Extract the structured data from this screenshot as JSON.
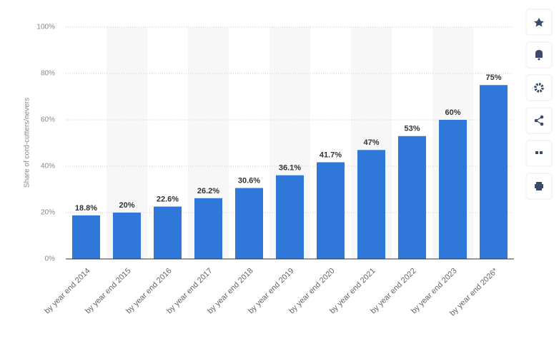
{
  "chart_data": {
    "type": "bar",
    "y_axis_label": "Share of cord-cutters/nevers",
    "categories": [
      "by year end 2014",
      "by year end 2015",
      "by year end 2016",
      "by year end 2017",
      "by year end 2018",
      "by year end 2019",
      "by year end 2020",
      "by year end 2021",
      "by year end 2022",
      "by year end 2023",
      "by year end 2026*"
    ],
    "values": [
      18.8,
      20,
      22.6,
      26.2,
      30.6,
      36.1,
      41.7,
      47,
      53,
      60,
      75
    ],
    "value_labels": [
      "18.8%",
      "20%",
      "22.6%",
      "26.2%",
      "30.6%",
      "36.1%",
      "41.7%",
      "47%",
      "53%",
      "60%",
      "75%"
    ],
    "color": "#2f77d9",
    "ylim": [
      0,
      100
    ],
    "yticks": [
      {
        "value": 0,
        "label": "0%"
      },
      {
        "value": 20,
        "label": "20%"
      },
      {
        "value": 40,
        "label": "40%"
      },
      {
        "value": 60,
        "label": "60%"
      },
      {
        "value": 80,
        "label": "80%"
      },
      {
        "value": 100,
        "label": "100%"
      }
    ],
    "grid": true
  }
}
